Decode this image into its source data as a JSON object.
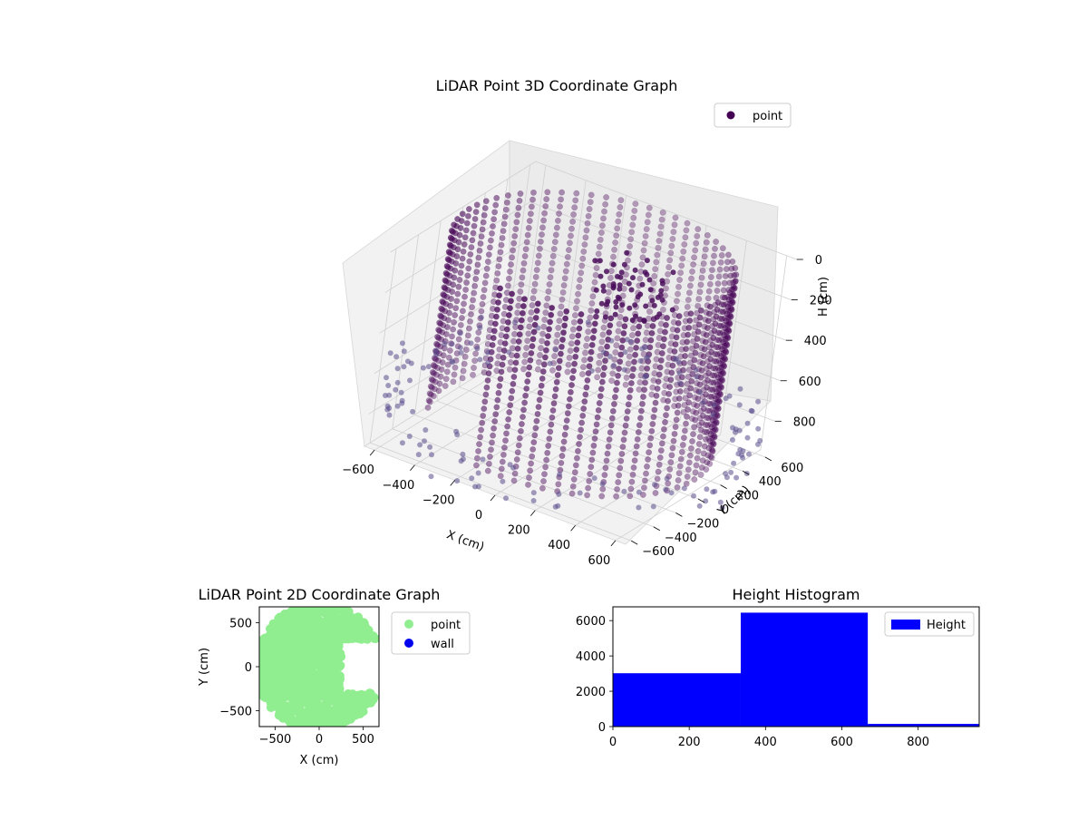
{
  "chart_data": [
    {
      "type": "scatter3d",
      "title": "LiDAR Point 3D Coordinate Graph",
      "xlabel": "X (cm)",
      "ylabel": "Y (cm)",
      "zlabel": "H (cm)",
      "xticks": [
        "−600",
        "−400",
        "−200",
        "0",
        "200",
        "400",
        "600"
      ],
      "yticks": [
        "−600",
        "−400",
        "−200",
        "0",
        "200",
        "400",
        "600"
      ],
      "zticks": [
        "0",
        "200",
        "400",
        "600",
        "800"
      ],
      "xlim": [
        -650,
        650
      ],
      "ylim": [
        -650,
        650
      ],
      "zlim": [
        0,
        960
      ],
      "z_inverted": true,
      "legend": [
        {
          "label": "point",
          "color": "#440154"
        }
      ],
      "legend_position": "top-right",
      "point_color": "#440154",
      "series": [
        {
          "name": "point",
          "shape": "cylindrical wall",
          "radius_cm": 620,
          "height_range": [
            0,
            900
          ],
          "open_sector": "front-left"
        }
      ]
    },
    {
      "type": "scatter",
      "title": "LiDAR Point 2D Coordinate Graph",
      "xlabel": "X (cm)",
      "ylabel": "Y (cm)",
      "xticks": [
        "−500",
        "0",
        "500"
      ],
      "yticks": [
        "500",
        "0",
        "−500"
      ],
      "xlim": [
        -680,
        680
      ],
      "ylim": [
        -680,
        680
      ],
      "legend": [
        {
          "label": "point",
          "color": "#90ee90"
        },
        {
          "label": "wall",
          "color": "#0000ee"
        }
      ],
      "legend_position": "outside-right"
    },
    {
      "type": "bar",
      "title": "Height Histogram",
      "bins": [
        {
          "start": 0,
          "end": 335,
          "count": 3020
        },
        {
          "start": 335,
          "end": 668,
          "count": 6450
        },
        {
          "start": 668,
          "end": 960,
          "count": 150
        }
      ],
      "xticks": [
        "0",
        "200",
        "400",
        "600",
        "800"
      ],
      "yticks": [
        "0",
        "2000",
        "4000",
        "6000"
      ],
      "xlim": [
        0,
        960
      ],
      "ylim": [
        0,
        6780
      ],
      "bar_color": "#0000ff",
      "legend": [
        {
          "label": "Height",
          "color": "#0000ff"
        }
      ],
      "legend_position": "upper right"
    }
  ]
}
